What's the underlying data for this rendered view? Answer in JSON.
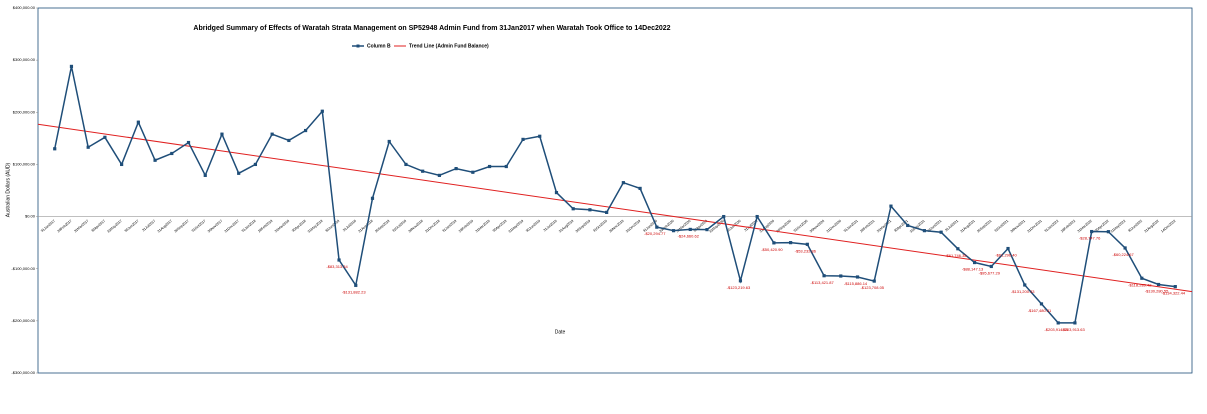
{
  "chart_data": {
    "type": "line",
    "title": "Abridged Summary of Effects of Waratah Strata Management on SP52948 Admin Fund from 31Jan2017 when Waratah Took Office to 14Dec2022",
    "y_label": "Australian Dollars (AUD)",
    "x_label": "Date",
    "legend": "top",
    "categories": [
      "31Jan2017",
      "28Feb2017",
      "31Mar2017",
      "30Apr2017",
      "31May2017",
      "30Jun2017",
      "31Jul2017",
      "31Aug2017",
      "30Sep2017",
      "31Oct2017",
      "30Nov2017",
      "31Dec2017",
      "31Jan2018",
      "28Feb2018",
      "31Mar2018",
      "30Apr2018",
      "31May2018",
      "30Jun2018",
      "31Jul2018",
      "31Aug2018",
      "30Sep2018",
      "31Oct2018",
      "30Nov2018",
      "31Dec2018",
      "31Jan2019",
      "28Feb2019",
      "31Mar2019",
      "30Apr2019",
      "31May2019",
      "30Jun2019",
      "31Jul2019",
      "31Aug2019",
      "30Sep2019",
      "31Oct2019",
      "30Nov2019",
      "31Dec2019",
      "31Jan2020",
      "29Feb2020",
      "31Mar2020",
      "30Apr2020",
      "31May2020",
      "30Jun2020",
      "31Jul2020",
      "31Aug2020",
      "30Sep2020",
      "31Oct2020",
      "30Nov2020",
      "31Dec2020",
      "31Jan2021",
      "28Feb2021",
      "31Mar2021",
      "30Apr2021",
      "31May2021",
      "30Jun2021",
      "31Jul2021",
      "31Aug2021",
      "30Sep2021",
      "31Oct2021",
      "30Nov2021",
      "31Dec2021",
      "31Jan2022",
      "28Feb2022",
      "31Mar2022",
      "30Apr2022",
      "31May2022",
      "30Jun2022",
      "31Aug2022",
      "14Dec2022"
    ],
    "series": [
      {
        "name": "Column B",
        "color": "#1f4e79",
        "values": [
          130000,
          288000,
          133000,
          152000,
          100000,
          181000,
          108000,
          121000,
          142000,
          79000,
          158000,
          83000,
          100000,
          158000,
          146000,
          165000,
          202000,
          -83313.34,
          -131882.23,
          35000,
          144000,
          100000,
          87000,
          79000,
          92000,
          85000,
          96000,
          96000,
          148000,
          154000,
          46000,
          15000,
          13000,
          8000,
          65000,
          54000,
          -20294.77,
          -27000,
          -24660.62,
          -25000,
          0,
          -123219.63,
          0,
          -50420.9,
          -50000,
          -53232.86,
          -113421.87,
          -114000,
          -115886.14,
          -123708.05,
          20000,
          -17000,
          -27000,
          -30000,
          -61746.35,
          -88147.13,
          -95677.29,
          -61296.4,
          -131200.33,
          -167480.31,
          -203914.85,
          -203913.63,
          -28747.76,
          -29000,
          -60224.67,
          -118289.42,
          -130280.55,
          -134322.44
        ],
        "value_labels": [
          null,
          null,
          null,
          null,
          null,
          null,
          null,
          null,
          null,
          null,
          null,
          null,
          null,
          null,
          null,
          null,
          null,
          "-$83,313.34",
          "-$131,882.23",
          null,
          null,
          null,
          null,
          null,
          null,
          null,
          null,
          null,
          null,
          null,
          null,
          null,
          null,
          null,
          null,
          null,
          "-$20,294.77",
          null,
          "-$24,660.62",
          null,
          null,
          "-$123,219.63",
          null,
          "-$50,420.90",
          null,
          "-$53,232.86",
          "-$113,421.87",
          null,
          "-$115,886.14",
          "-$123,708.05",
          null,
          null,
          null,
          null,
          "-$61,746.35",
          "-$88,147.13",
          "-$95,677.29",
          "-$61,296.40",
          "-$131,200.33",
          "-$167,480.31",
          "-$203,914.85",
          "-$203,913.63",
          "-$28,747.76",
          null,
          "-$60,224.67",
          "-$118,289.42",
          "-$130,280.55",
          "-$134,322.44"
        ]
      }
    ],
    "trend": {
      "name": "Trend Line (Admin Fund Balance)",
      "color": "#e02020",
      "values": [
        177000,
        -144000
      ]
    },
    "label_color": "#cc0000",
    "ylim": [
      -300000,
      400000
    ],
    "yticks": [
      {
        "value": -300000,
        "label": "-$300,000.00"
      },
      {
        "value": -200000,
        "label": "-$200,000.00"
      },
      {
        "value": -100000,
        "label": "-$100,000.00"
      },
      {
        "value": 0,
        "label": "$0.00"
      },
      {
        "value": 100000,
        "label": "$100,000.00"
      },
      {
        "value": 200000,
        "label": "$200,000.00"
      },
      {
        "value": 300000,
        "label": "$300,000.00"
      },
      {
        "value": 400000,
        "label": "$400,000.00"
      }
    ]
  }
}
